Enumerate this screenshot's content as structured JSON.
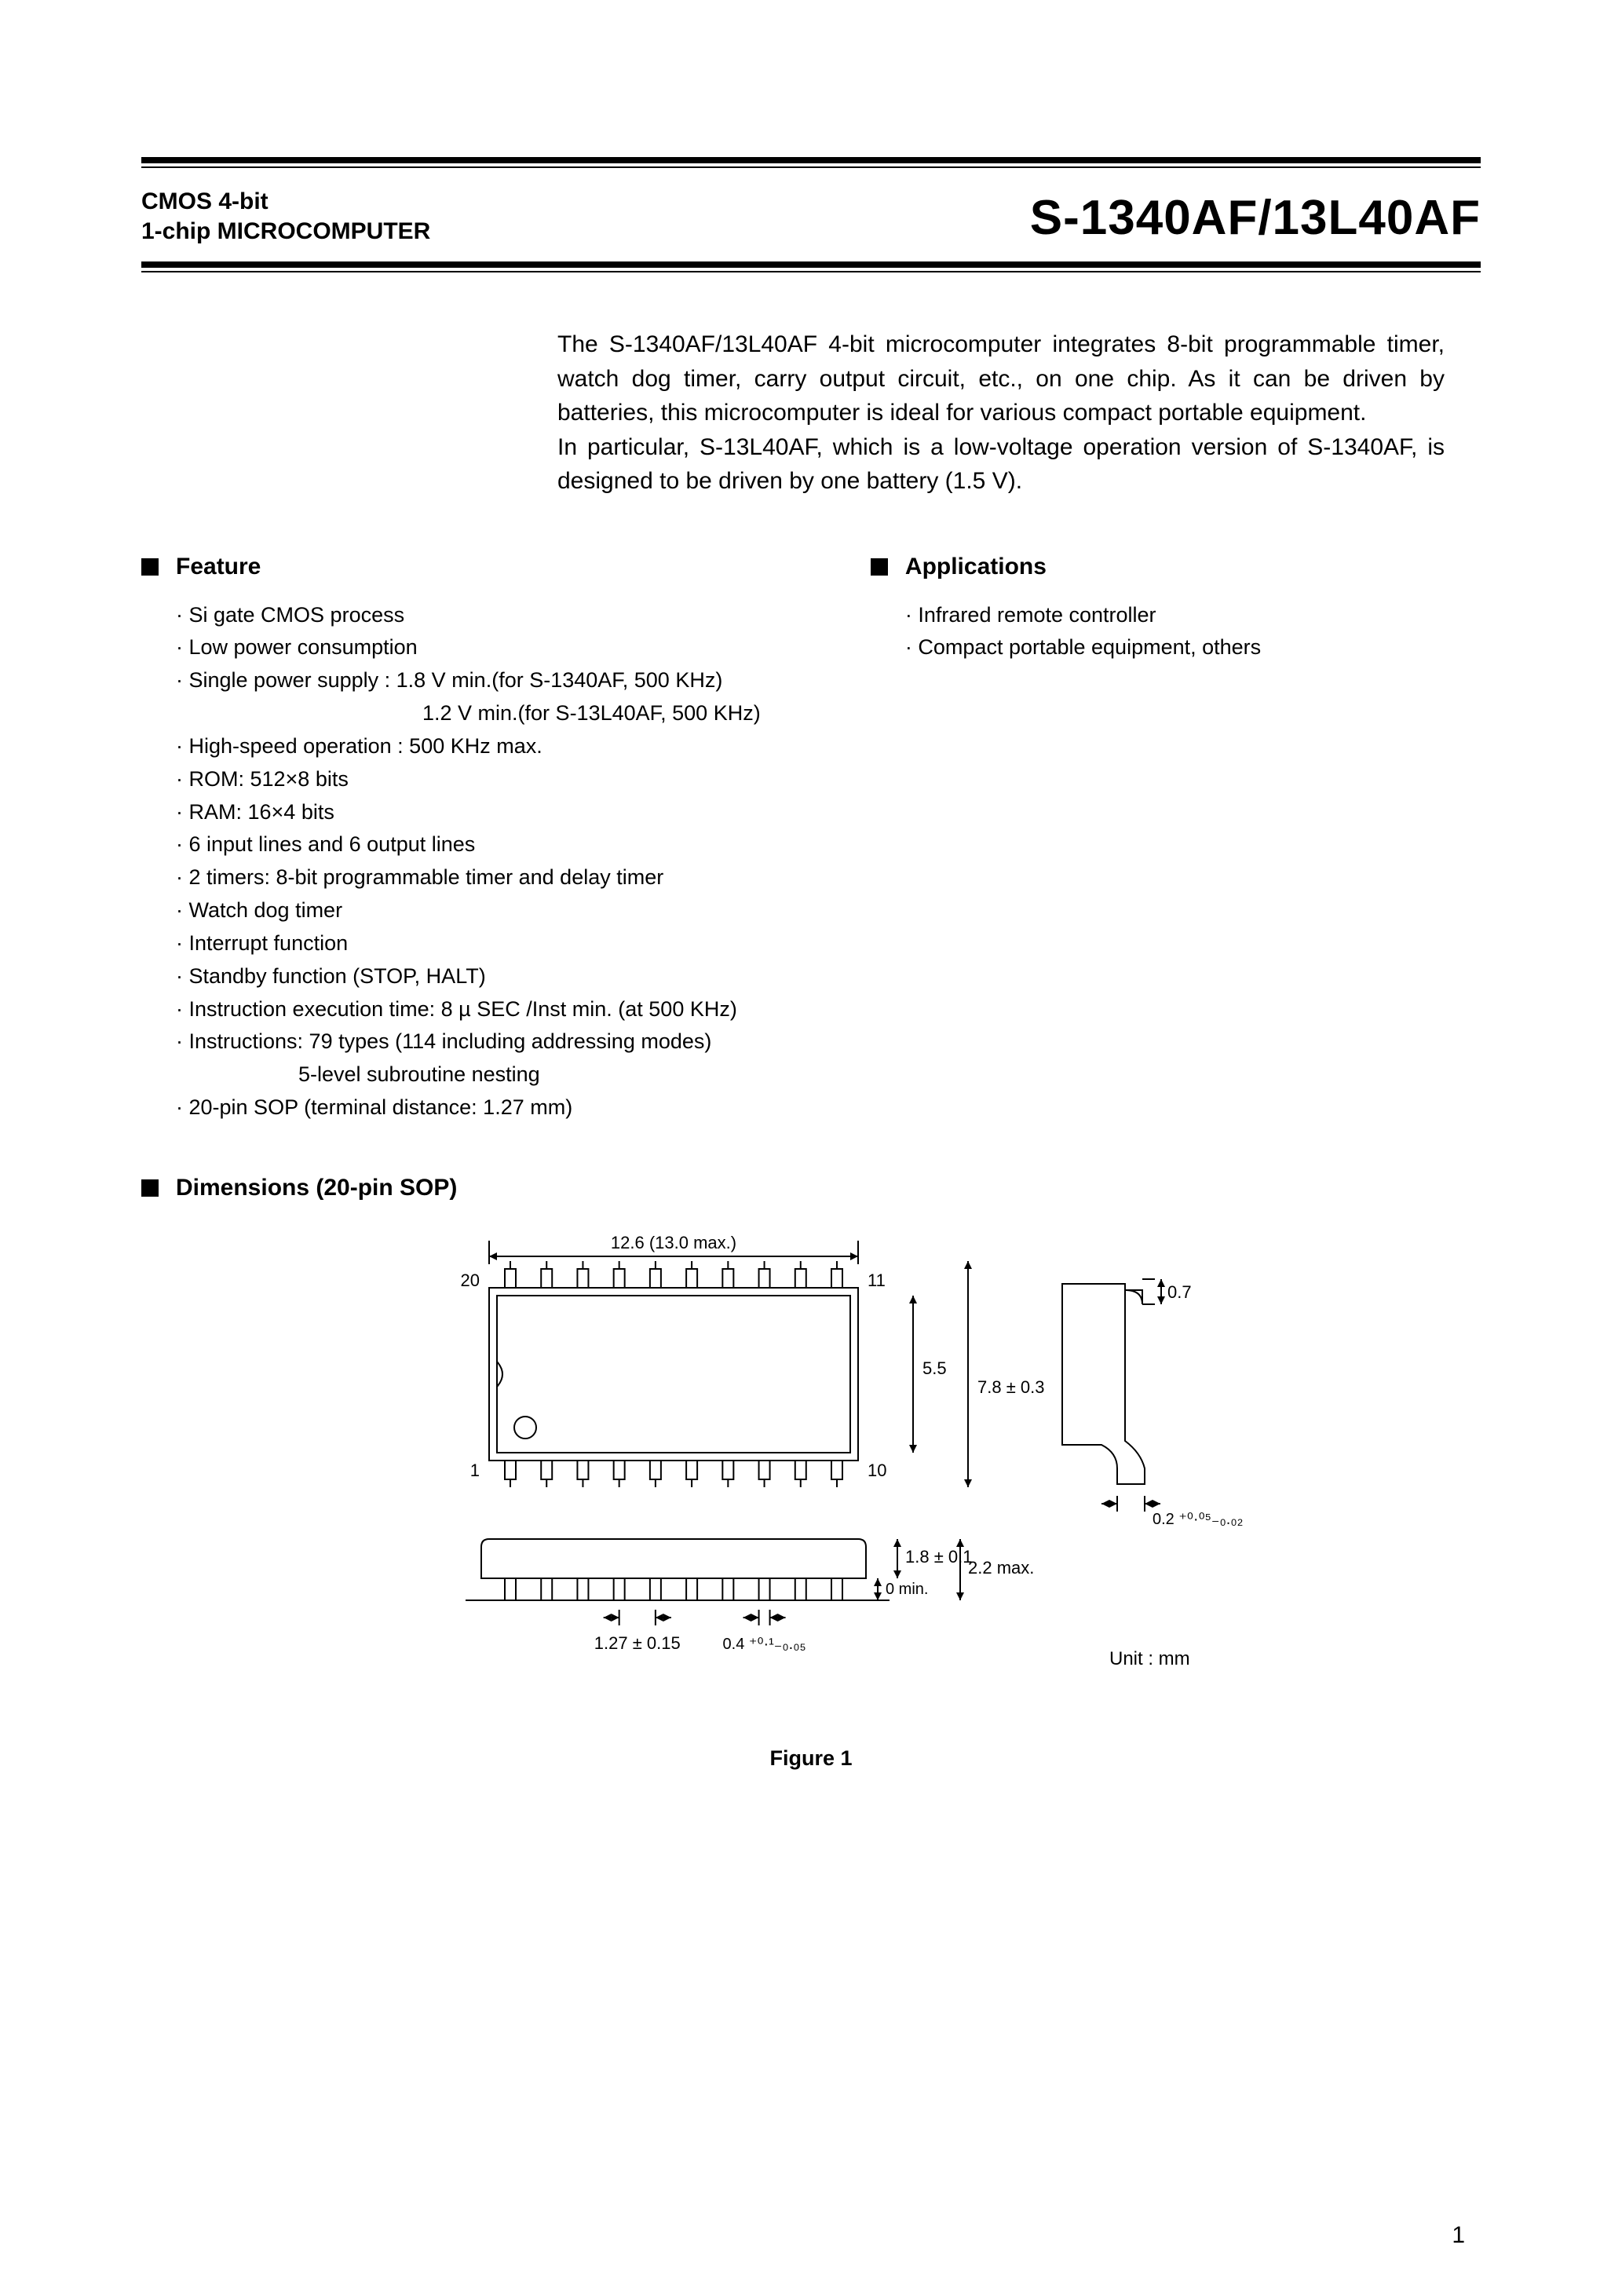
{
  "header": {
    "subtitle_line1": "CMOS 4-bit",
    "subtitle_line2": "1-chip MICROCOMPUTER",
    "part_number": "S-1340AF/13L40AF"
  },
  "intro": {
    "p1": "The S-1340AF/13L40AF 4-bit microcomputer integrates 8-bit programmable timer, watch dog timer, carry output circuit, etc., on one chip.   As it can be driven by batteries, this microcomputer is ideal for various compact portable equipment.",
    "p2": "In particular, S-13L40AF, which is a low-voltage operation version of S-1340AF, is designed to be driven by one battery (1.5 V)."
  },
  "sections": {
    "feature_title": "Feature",
    "applications_title": "Applications",
    "dimensions_title": "Dimensions (20-pin SOP)"
  },
  "features": [
    "Si gate CMOS process",
    "Low power consumption",
    "Single power supply  : 1.8 V min.(for S-1340AF, 500 KHz)",
    "1.2 V min.(for S-13L40AF, 500 KHz)",
    "High-speed operation  : 500 KHz max.",
    "ROM: 512×8 bits",
    "RAM: 16×4 bits",
    "6 input lines and 6 output lines",
    "2 timers: 8-bit programmable timer and delay timer",
    "Watch dog timer",
    "Interrupt function",
    "Standby function (STOP, HALT)",
    "Instruction execution time: 8 µ SEC /Inst min. (at 500 KHz)",
    "Instructions: 79 types (114 including addressing modes)",
    "5-level subroutine nesting",
    "20-pin SOP (terminal distance: 1.27 mm)"
  ],
  "applications": [
    "Infrared remote controller",
    "Compact portable equipment, others"
  ],
  "diagram": {
    "top_dim": "12.6 (13.0 max.)",
    "pin20": "20",
    "pin11": "11",
    "pin1": "1",
    "pin10": "10",
    "dim_5_5": "5.5",
    "dim_7_8": "7.8 ± 0.3",
    "dim_0_7": "0.7",
    "dim_lead": "0.2 ⁺⁰·⁰⁵₋₀.₀₂",
    "dim_1_8": "1.8 ± 0.1",
    "dim_2_2": "2.2 max.",
    "dim_0min": "0 min.",
    "dim_1_27": "1.27 ± 0.15",
    "dim_0_4": "0.4 ⁺⁰·¹₋₀.₀₅",
    "unit_label": "Unit : mm",
    "caption": "Figure 1",
    "colors": {
      "line": "#000000",
      "bg": "#ffffff"
    },
    "stroke_width": 2
  },
  "page_number": "1"
}
